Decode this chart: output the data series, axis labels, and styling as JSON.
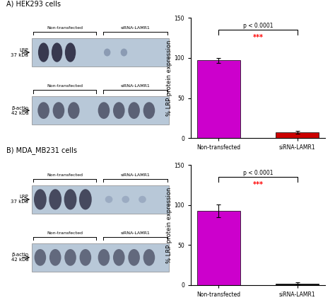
{
  "panel_A_title": "A) HEK293 cells",
  "panel_B_title": "B) MDA_MB231 cells",
  "bar1_A_value": 97,
  "bar1_A_err": 3,
  "bar2_A_value": 7,
  "bar2_A_err": 2,
  "bar1_B_value": 93,
  "bar1_B_err": 8,
  "bar2_B_value": 2,
  "bar2_B_err": 1,
  "bar_magenta": "#CC00CC",
  "bar_red": "#CC0000",
  "bar_black": "#111111",
  "ylabel": "% LRP protein expression",
  "xlabel1": "Non-transfected",
  "xlabel2": "siRNA-LAMR1",
  "ylim": [
    0,
    150
  ],
  "yticks": [
    0,
    50,
    100,
    150
  ],
  "pvalue_text": "p < 0.0001",
  "sig_text": "***",
  "blot_bg": "#B8C8D8",
  "nt_label": "Non-transfected",
  "sirna_label": "siRNA-LAMR1",
  "title_fontsize": 7,
  "axis_fontsize": 6,
  "tick_fontsize": 5.5,
  "bar_width": 0.55,
  "fig_bg": "#FFFFFF"
}
